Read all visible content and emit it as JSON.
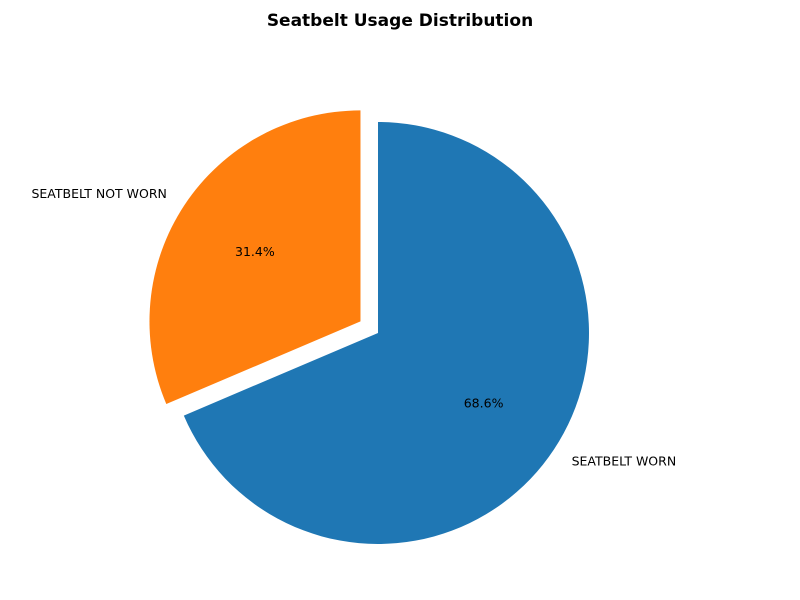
{
  "chart_data": {
    "type": "pie",
    "title": "Seatbelt Usage Distribution",
    "slices": [
      {
        "label": "SEATBELT WORN",
        "value": 68.6,
        "pct_label": "68.6%",
        "color": "#1f77b4",
        "exploded": false
      },
      {
        "label": "SEATBELT NOT WORN",
        "value": 31.4,
        "pct_label": "31.4%",
        "color": "#ff7f0e",
        "exploded": true
      }
    ],
    "start_angle_deg": 90,
    "direction": "clockwise",
    "legend": "none"
  }
}
